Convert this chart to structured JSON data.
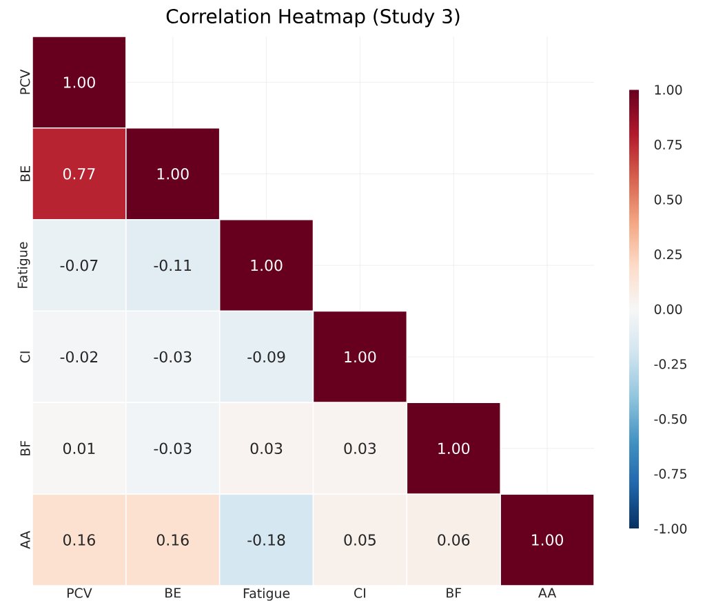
{
  "chart_data": {
    "type": "heatmap",
    "title": "Correlation Heatmap (Study 3)",
    "categories": [
      "PCV",
      "BE",
      "Fatigue",
      "CI",
      "BF",
      "AA"
    ],
    "y_categories": [
      "PCV",
      "BE",
      "Fatigue",
      "CI",
      "BF",
      "AA"
    ],
    "cells": [
      [
        1.0,
        null,
        null,
        null,
        null,
        null
      ],
      [
        0.77,
        1.0,
        null,
        null,
        null,
        null
      ],
      [
        -0.07,
        -0.11,
        1.0,
        null,
        null,
        null
      ],
      [
        -0.02,
        -0.03,
        -0.09,
        1.0,
        null,
        null
      ],
      [
        0.01,
        -0.03,
        0.03,
        0.03,
        1.0,
        null
      ],
      [
        0.16,
        0.16,
        -0.18,
        0.05,
        0.06,
        1.0
      ]
    ],
    "cell_labels": [
      [
        "1.00",
        null,
        null,
        null,
        null,
        null
      ],
      [
        "0.77",
        "1.00",
        null,
        null,
        null,
        null
      ],
      [
        "-0.07",
        "-0.11",
        "1.00",
        null,
        null,
        null
      ],
      [
        "-0.02",
        "-0.03",
        "-0.09",
        "1.00",
        null,
        null
      ],
      [
        "0.01",
        "-0.03",
        "0.03",
        "0.03",
        "1.00",
        null
      ],
      [
        "0.16",
        "0.16",
        "-0.18",
        "0.05",
        "0.06",
        "1.00"
      ]
    ],
    "clim": [
      -1,
      1
    ],
    "cticks": [
      {
        "value": -1,
        "label": "-1.00"
      },
      {
        "value": -0.75,
        "label": "-0.75"
      },
      {
        "value": -0.5,
        "label": "-0.50"
      },
      {
        "value": -0.25,
        "label": "-0.25"
      },
      {
        "value": 0,
        "label": "0.00"
      },
      {
        "value": 0.25,
        "label": "0.25"
      },
      {
        "value": 0.5,
        "label": "0.50"
      },
      {
        "value": 0.75,
        "label": "0.75"
      },
      {
        "value": 1,
        "label": "1.00"
      }
    ],
    "grid": true
  }
}
